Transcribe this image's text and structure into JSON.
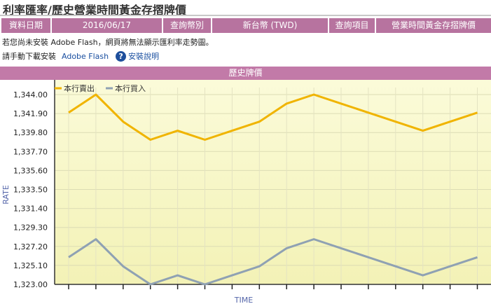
{
  "page": {
    "title": "利率匯率/歷史營業時間黃金存摺牌價"
  },
  "info_bar": {
    "date_label": "資料日期",
    "date_value": "2016/06/17",
    "currency_label": "查詢幣別",
    "currency_value": "新台幣 (TWD)",
    "item_label": "查詢項目",
    "item_value": "營業時間黃金存摺牌價"
  },
  "notice": {
    "flash_missing": "若您尚未安裝 Adobe Flash，網頁將無法顯示匯利率走勢圖。",
    "download_prompt": "請手動下載安裝",
    "download_link": "Adobe Flash",
    "install_help": "安裝說明"
  },
  "chart_header": "歷史牌價",
  "colors": {
    "sell": "#f0b400",
    "buy": "#8fa1b3",
    "header": "#c27aa8",
    "cell": "#b7739f"
  },
  "chart_data": {
    "type": "line",
    "xlabel": "TIME",
    "ylabel": "RATE",
    "ylim": [
      1323.0,
      1344.0
    ],
    "y_ticks": [
      "1,323.00",
      "1,325.10",
      "1,327.20",
      "1,329.30",
      "1,331.40",
      "1,333.50",
      "1,335.60",
      "1,337.70",
      "1,339.80",
      "1,341.90",
      "1,344.00"
    ],
    "x_count": 16,
    "legend_position": "top-left",
    "grid": true,
    "series": [
      {
        "name": "本行賣出",
        "color": "#f0b400",
        "values": [
          1342.0,
          1344.0,
          1341.0,
          1339.0,
          1340.0,
          1339.0,
          1340.0,
          1341.0,
          1343.0,
          1344.0,
          1343.0,
          1342.0,
          1341.0,
          1340.0,
          1341.0,
          1342.0
        ]
      },
      {
        "name": "本行買入",
        "color": "#8fa1b3",
        "values": [
          1326.0,
          1328.0,
          1325.0,
          1323.0,
          1324.0,
          1323.0,
          1324.0,
          1325.0,
          1327.0,
          1328.0,
          1327.0,
          1326.0,
          1325.0,
          1324.0,
          1325.0,
          1326.0
        ]
      }
    ]
  }
}
